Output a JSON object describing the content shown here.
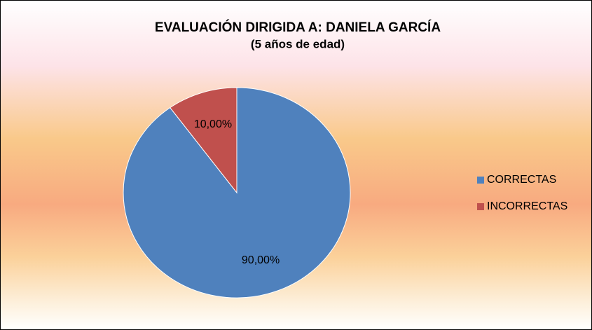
{
  "chart_data": {
    "type": "pie",
    "title": "EVALUACIÓN DIRIGIDA A: DANIELA GARCÍA",
    "subtitle": "(5 años de edad)",
    "categories": [
      "CORRECTAS",
      "INCORRECTAS"
    ],
    "values": [
      90,
      10
    ],
    "value_labels": [
      "90,00%",
      "10,00%"
    ],
    "colors": [
      "#4f81bd",
      "#c0504d"
    ],
    "legend": "right"
  }
}
